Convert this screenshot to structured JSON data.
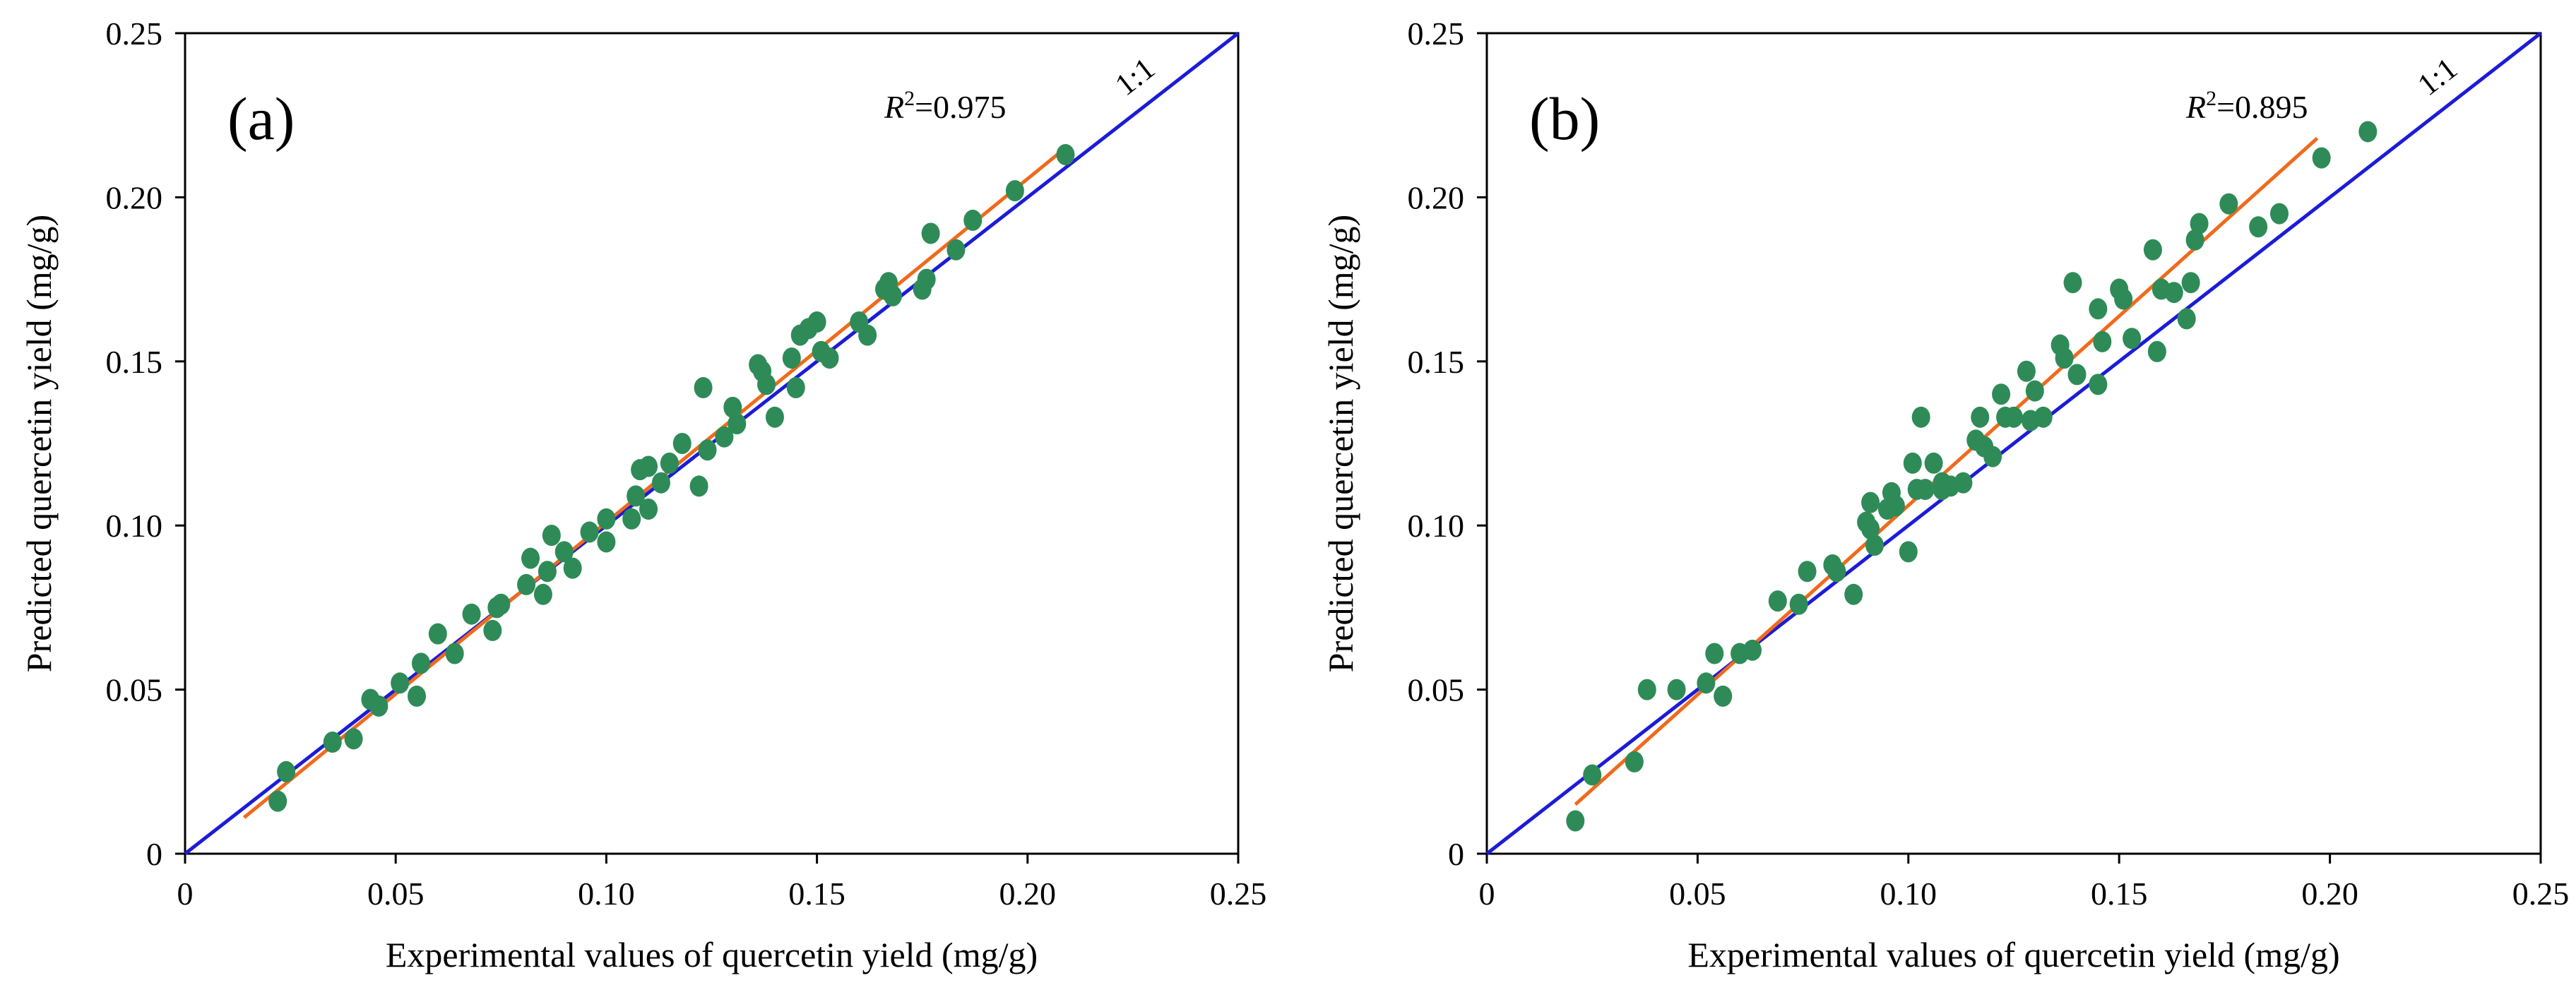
{
  "figure": {
    "colors": {
      "points": "#2e8b57",
      "identity_line": "#1c1cd6",
      "fit_line": "#f06a1c",
      "axes": "#000000"
    }
  },
  "chart_data": [
    {
      "type": "scatter",
      "panel_label": "(a)",
      "title": "",
      "xlabel": "Experimental values of quercetin yield (mg/g)",
      "ylabel": "Predicted quercetin yield (mg/g)",
      "xlim": [
        0,
        0.25
      ],
      "ylim": [
        0,
        0.25
      ],
      "xticks": [
        "0",
        "0.05",
        "0.10",
        "0.15",
        "0.20",
        "0.25"
      ],
      "yticks": [
        "0",
        "0.05",
        "0.10",
        "0.15",
        "0.20",
        "0.25"
      ],
      "r2_prefix": "R",
      "r2_sup": "2",
      "r2_value": "=0.975",
      "identity_label": "1:1",
      "identity_line": {
        "x": [
          0,
          0.25
        ],
        "y": [
          0,
          0.25
        ]
      },
      "fit_line": {
        "x": [
          0.014,
          0.208
        ],
        "y": [
          0.011,
          0.214
        ]
      },
      "points": {
        "x": [
          0.022,
          0.024,
          0.035,
          0.04,
          0.044,
          0.046,
          0.051,
          0.055,
          0.056,
          0.06,
          0.064,
          0.068,
          0.073,
          0.074,
          0.075,
          0.081,
          0.082,
          0.085,
          0.086,
          0.087,
          0.09,
          0.092,
          0.096,
          0.1,
          0.1,
          0.106,
          0.107,
          0.108,
          0.11,
          0.11,
          0.113,
          0.115,
          0.118,
          0.122,
          0.123,
          0.124,
          0.128,
          0.13,
          0.131,
          0.136,
          0.137,
          0.138,
          0.14,
          0.144,
          0.145,
          0.146,
          0.148,
          0.15,
          0.151,
          0.153,
          0.16,
          0.162,
          0.166,
          0.167,
          0.168,
          0.175,
          0.176,
          0.177,
          0.183,
          0.187,
          0.197,
          0.209
        ],
        "y": [
          0.016,
          0.025,
          0.034,
          0.035,
          0.047,
          0.045,
          0.052,
          0.048,
          0.058,
          0.067,
          0.061,
          0.073,
          0.068,
          0.075,
          0.076,
          0.082,
          0.09,
          0.079,
          0.086,
          0.097,
          0.092,
          0.087,
          0.098,
          0.095,
          0.102,
          0.102,
          0.109,
          0.117,
          0.118,
          0.105,
          0.113,
          0.119,
          0.125,
          0.112,
          0.142,
          0.123,
          0.127,
          0.136,
          0.131,
          0.149,
          0.147,
          0.143,
          0.133,
          0.151,
          0.142,
          0.158,
          0.16,
          0.162,
          0.153,
          0.151,
          0.162,
          0.158,
          0.172,
          0.174,
          0.17,
          0.172,
          0.175,
          0.189,
          0.184,
          0.193,
          0.202,
          0.213
        ]
      }
    },
    {
      "type": "scatter",
      "panel_label": "(b)",
      "title": "",
      "xlabel": "Experimental values of quercetin yield (mg/g)",
      "ylabel": "Predicted quercetin yield (mg/g)",
      "xlim": [
        0,
        0.25
      ],
      "ylim": [
        0,
        0.25
      ],
      "xticks": [
        "0",
        "0.05",
        "0.10",
        "0.15",
        "0.20",
        "0.25"
      ],
      "yticks": [
        "0",
        "0.05",
        "0.10",
        "0.15",
        "0.20",
        "0.25"
      ],
      "r2_prefix": "R",
      "r2_sup": "2",
      "r2_value": "=0.895",
      "identity_label": "1:1",
      "identity_line": {
        "x": [
          0,
          0.25
        ],
        "y": [
          0,
          0.25
        ]
      },
      "fit_line": {
        "x": [
          0.021,
          0.197
        ],
        "y": [
          0.015,
          0.218
        ]
      },
      "points": {
        "x": [
          0.021,
          0.025,
          0.035,
          0.038,
          0.045,
          0.052,
          0.054,
          0.056,
          0.06,
          0.063,
          0.069,
          0.074,
          0.076,
          0.082,
          0.083,
          0.087,
          0.09,
          0.091,
          0.091,
          0.092,
          0.095,
          0.096,
          0.097,
          0.1,
          0.101,
          0.102,
          0.103,
          0.104,
          0.106,
          0.108,
          0.108,
          0.11,
          0.113,
          0.116,
          0.117,
          0.118,
          0.12,
          0.122,
          0.123,
          0.125,
          0.128,
          0.129,
          0.13,
          0.132,
          0.136,
          0.137,
          0.139,
          0.14,
          0.145,
          0.145,
          0.146,
          0.15,
          0.151,
          0.153,
          0.158,
          0.159,
          0.16,
          0.163,
          0.166,
          0.167,
          0.168,
          0.169,
          0.176,
          0.183,
          0.188,
          0.198,
          0.209
        ],
        "y": [
          0.01,
          0.024,
          0.028,
          0.05,
          0.05,
          0.052,
          0.061,
          0.048,
          0.061,
          0.062,
          0.077,
          0.076,
          0.086,
          0.088,
          0.086,
          0.079,
          0.101,
          0.107,
          0.099,
          0.094,
          0.105,
          0.11,
          0.106,
          0.092,
          0.119,
          0.111,
          0.133,
          0.111,
          0.119,
          0.113,
          0.111,
          0.112,
          0.113,
          0.126,
          0.133,
          0.124,
          0.121,
          0.14,
          0.133,
          0.133,
          0.147,
          0.132,
          0.141,
          0.133,
          0.155,
          0.151,
          0.174,
          0.146,
          0.166,
          0.143,
          0.156,
          0.172,
          0.169,
          0.157,
          0.184,
          0.153,
          0.172,
          0.171,
          0.163,
          0.174,
          0.187,
          0.192,
          0.198,
          0.191,
          0.195,
          0.212,
          0.22
        ]
      }
    }
  ]
}
